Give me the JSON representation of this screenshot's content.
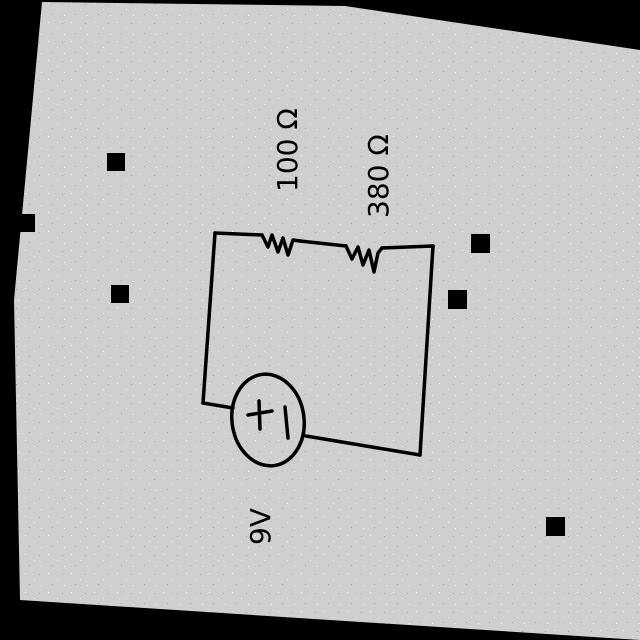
{
  "diagram": {
    "type": "series circuit (hand-drawn)",
    "colors": {
      "background": "#000000",
      "paper": "#cfcfcf",
      "ink": "#000000",
      "speckle": "#ffffff"
    },
    "components": {
      "resistor_1": {
        "label": "100 Ω"
      },
      "resistor_2": {
        "label": "380 Ω"
      },
      "source": {
        "polarity": "+ |",
        "label": "9V"
      }
    }
  }
}
